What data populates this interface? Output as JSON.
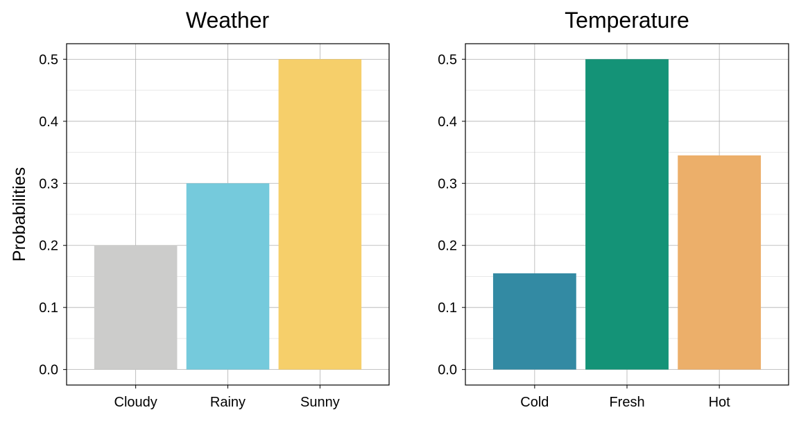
{
  "chart_data": [
    {
      "type": "bar",
      "title": "Weather",
      "xlabel": "",
      "ylabel": "Probabilities",
      "categories": [
        "Cloudy",
        "Rainy",
        "Sunny"
      ],
      "values": [
        0.2,
        0.3,
        0.5
      ],
      "colors": [
        "#cccccb",
        "#75cadc",
        "#f6cf6a"
      ],
      "ylim": [
        -0.025,
        0.525
      ],
      "yticks": [
        "0.0",
        "0.1",
        "0.2",
        "0.3",
        "0.4",
        "0.5"
      ],
      "grid": true
    },
    {
      "type": "bar",
      "title": "Temperature",
      "xlabel": "",
      "ylabel": "",
      "categories": [
        "Cold",
        "Fresh",
        "Hot"
      ],
      "values": [
        0.155,
        0.5,
        0.345
      ],
      "colors": [
        "#338aa3",
        "#149377",
        "#ecaf6a"
      ],
      "ylim": [
        -0.025,
        0.525
      ],
      "yticks": [
        "0.0",
        "0.1",
        "0.2",
        "0.3",
        "0.4",
        "0.5"
      ],
      "grid": true
    }
  ]
}
